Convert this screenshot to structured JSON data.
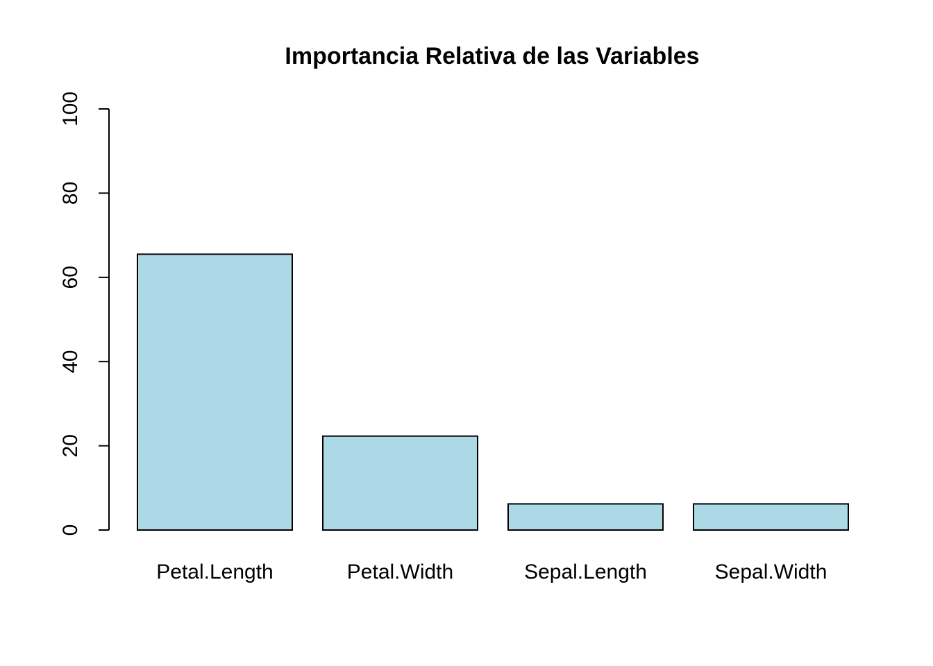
{
  "chart_data": {
    "type": "bar",
    "title": "Importancia Relativa de las Variables",
    "xlabel": "",
    "ylabel": "",
    "categories": [
      "Petal.Length",
      "Petal.Width",
      "Sepal.Length",
      "Sepal.Width"
    ],
    "values": [
      65.5,
      22.3,
      6.2,
      6.2
    ],
    "ylim": [
      0,
      100
    ],
    "yticks": [
      "0",
      "20",
      "40",
      "60",
      "80",
      "100"
    ],
    "grid": false,
    "legend": "none",
    "bar_color": "#ADD8E6",
    "border_color": "#000000"
  }
}
